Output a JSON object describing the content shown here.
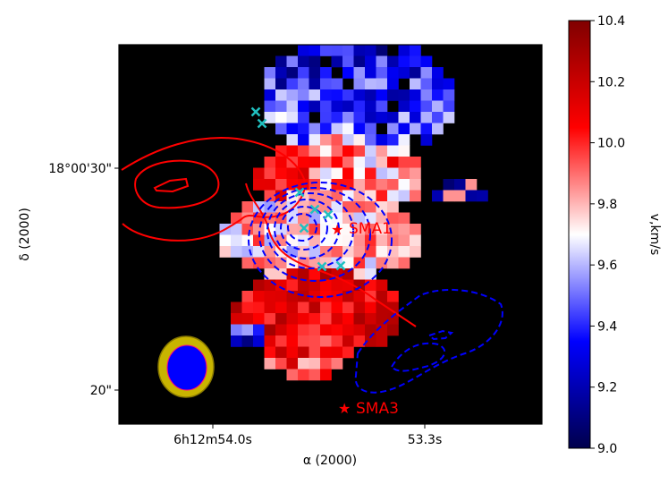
{
  "chart_data": {
    "type": "heatmap",
    "title": "",
    "xlabel": "α (2000)",
    "ylabel": "δ (2000)",
    "x_ticks": [
      "6h12m54.0s",
      "53.3s"
    ],
    "y_ticks": [
      "18°00'30\"",
      "20\""
    ],
    "colorbar": {
      "label": "v,km/s",
      "vmin": 9.0,
      "vmax": 10.4,
      "ticks": [
        "9.0",
        "9.2",
        "9.4",
        "9.6",
        "9.8",
        "10.0",
        "10.2",
        "10.4"
      ],
      "colormap": "seismic"
    },
    "sources": [
      {
        "name": "SMA1",
        "color": "#ff0000"
      },
      {
        "name": "SMA3",
        "color": "#ff0000"
      }
    ],
    "contours": {
      "red_levels": 3,
      "blue_dashed_levels": 8
    },
    "markers": "cyan x",
    "beam": {
      "outer_color": "#c8b400",
      "inner_color": "#0000ff"
    },
    "grid": false
  }
}
